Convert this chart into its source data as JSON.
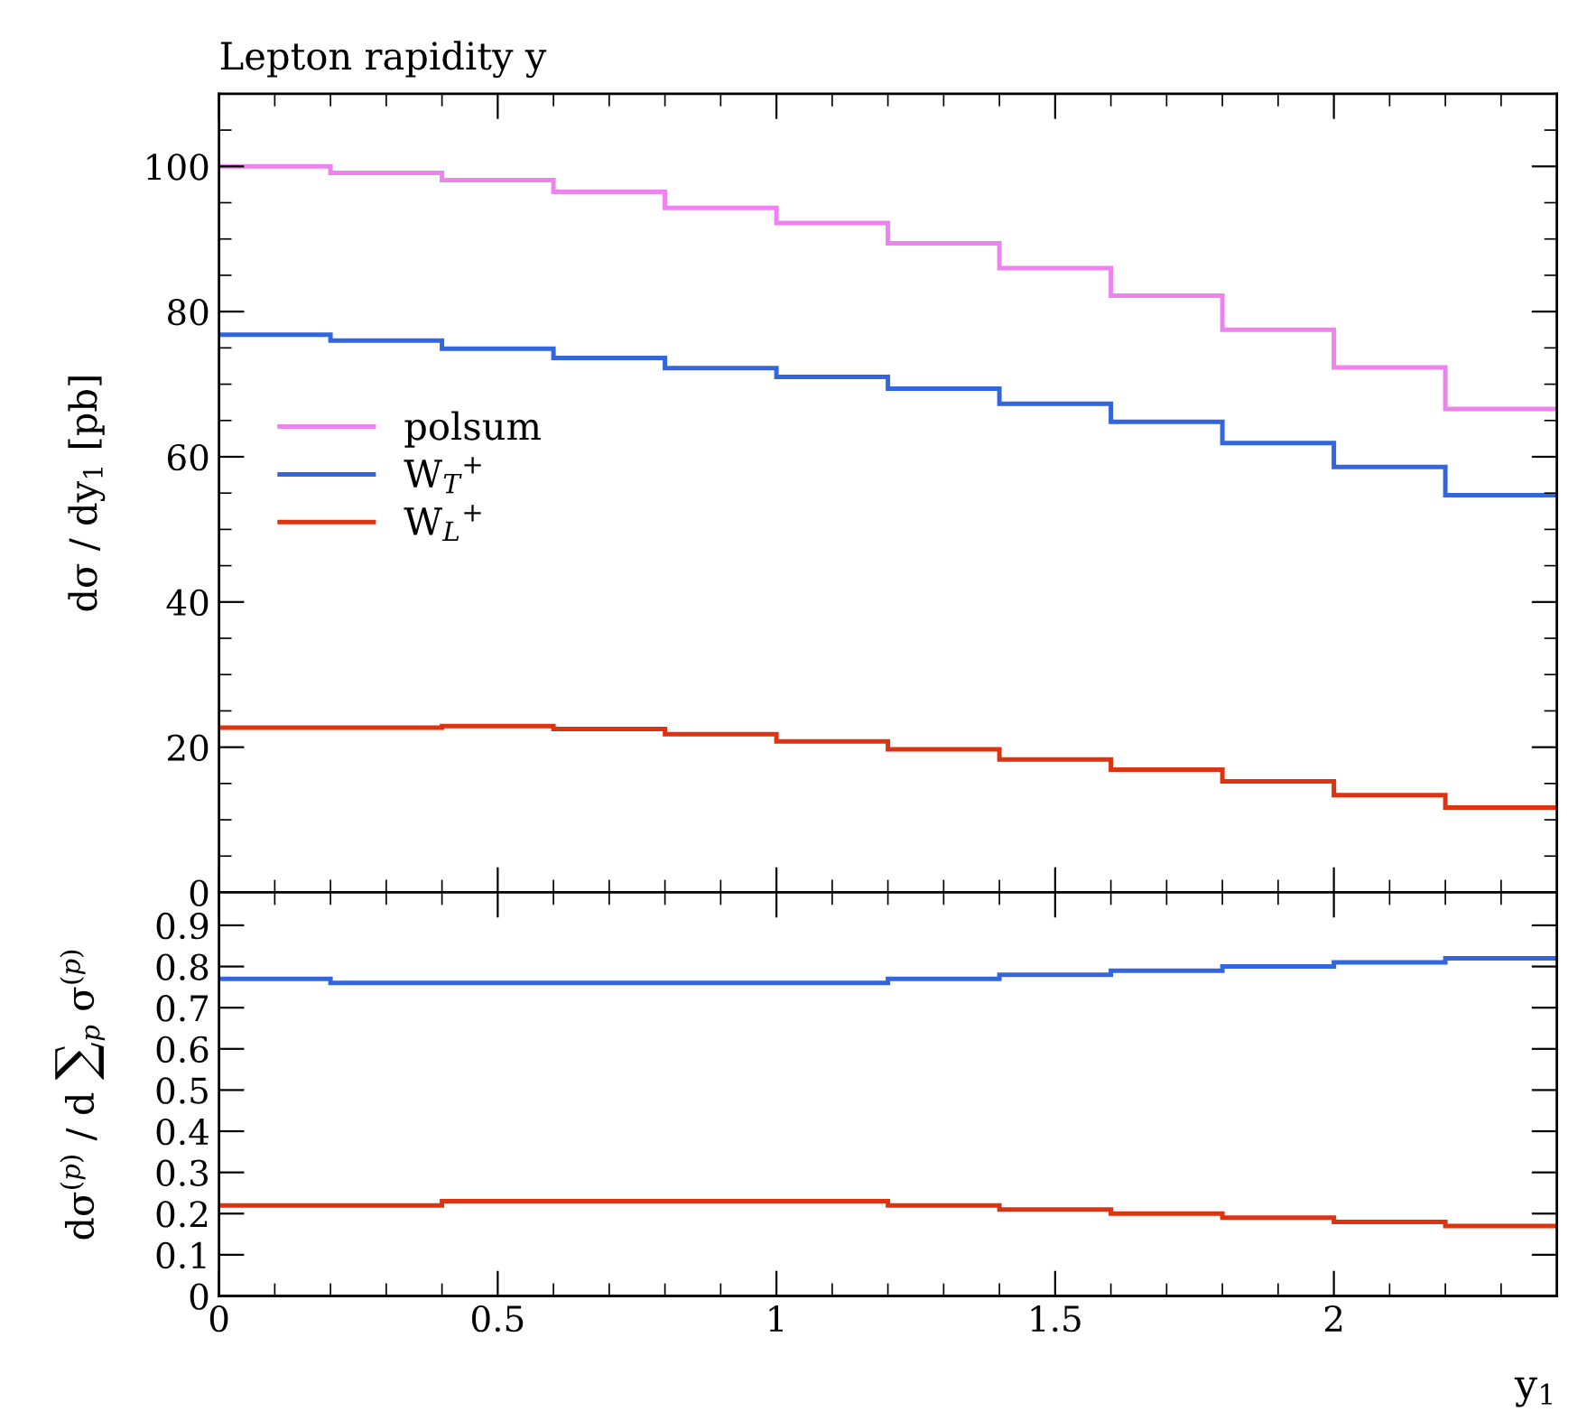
{
  "chart_data": [
    {
      "type": "histogram",
      "title": "Lepton rapidity y",
      "ylabel": "dσ / dy$_{1}$ [pb]",
      "bins": [
        0,
        0.2,
        0.4,
        0.6,
        0.8,
        1.0,
        1.2,
        1.4,
        1.6,
        1.8,
        2.0,
        2.2,
        2.4
      ],
      "series": [
        {
          "name": "polsum",
          "color": "#ee82ee",
          "values": [
            100,
            99.1,
            98.1,
            96.5,
            94.3,
            92.2,
            89.4,
            86,
            82.2,
            77.5,
            72.3,
            66.6
          ]
        },
        {
          "name": "W$_{T}$$^{+}$",
          "color": "#3366dd",
          "values": [
            76.8,
            76,
            74.9,
            73.6,
            72.2,
            71,
            69.4,
            67.3,
            64.8,
            61.9,
            58.6,
            54.7
          ]
        },
        {
          "name": "W$_{L}$$^{+}$",
          "color": "#dd3311",
          "values": [
            22.7,
            22.7,
            22.9,
            22.5,
            21.8,
            20.8,
            19.7,
            18.3,
            16.9,
            15.3,
            13.4,
            11.7
          ]
        }
      ],
      "xlim": [
        0,
        2.4
      ],
      "xticks": [
        0,
        {
          "value": 0.1,
          "label": null
        },
        {
          "value": 0.2,
          "label": null
        },
        {
          "value": 0.3,
          "label": null
        },
        {
          "value": 0.4,
          "label": null
        },
        0.5,
        {
          "value": 0.6,
          "label": null
        },
        {
          "value": 0.7,
          "label": null
        },
        {
          "value": 0.8,
          "label": null
        },
        {
          "value": 0.9,
          "label": null
        },
        1,
        {
          "value": 1.1,
          "label": null
        },
        {
          "value": 1.2,
          "label": null
        },
        {
          "value": 1.3,
          "label": null
        },
        {
          "value": 1.4,
          "label": null
        },
        1.5,
        {
          "value": 1.6,
          "label": null
        },
        {
          "value": 1.7,
          "label": null
        },
        {
          "value": 1.8,
          "label": null
        },
        {
          "value": 1.9,
          "label": null
        },
        2,
        {
          "value": 2.1,
          "label": null
        },
        {
          "value": 2.2,
          "label": null
        },
        {
          "value": 2.3,
          "label": null
        }
      ],
      "ylim": [
        0,
        110
      ],
      "yticks": [
        0,
        {
          "value": 5,
          "label": null
        },
        {
          "value": 10,
          "label": null
        },
        {
          "value": 15,
          "label": null
        },
        20,
        {
          "value": 25,
          "label": null
        },
        {
          "value": 30,
          "label": null
        },
        {
          "value": 35,
          "label": null
        },
        40,
        {
          "value": 45,
          "label": null
        },
        {
          "value": 50,
          "label": null
        },
        {
          "value": 55,
          "label": null
        },
        60,
        {
          "value": 65,
          "label": null
        },
        {
          "value": 70,
          "label": null
        },
        {
          "value": 75,
          "label": null
        },
        80,
        {
          "value": 85,
          "label": null
        },
        {
          "value": 90,
          "label": null
        },
        {
          "value": 95,
          "label": null
        },
        100,
        {
          "value": 105,
          "label": null
        }
      ],
      "legend": "left",
      "grid": false,
      "tick_labels": "y"
    },
    {
      "type": "histogram",
      "ylabel": "dσ$^{(p)}$ / d ∑$_{p}$ σ$^{(p)}$",
      "xlabel": "y$_{1}$",
      "bins": [
        0,
        0.2,
        0.4,
        0.6,
        0.8,
        1.0,
        1.2,
        1.4,
        1.6,
        1.8,
        2.0,
        2.2,
        2.4
      ],
      "series": [
        {
          "color": "#3366dd",
          "values": [
            0.77,
            0.76,
            0.76,
            0.76,
            0.76,
            0.76,
            0.77,
            0.78,
            0.79,
            0.8,
            0.81,
            0.82
          ]
        },
        {
          "color": "#dd3311",
          "values": [
            0.22,
            0.22,
            0.23,
            0.23,
            0.23,
            0.23,
            0.22,
            0.21,
            0.2,
            0.19,
            0.18,
            0.17
          ]
        }
      ],
      "xlim": [
        0,
        2.4
      ],
      "xticks": [
        0,
        {
          "value": 0.1,
          "label": null
        },
        {
          "value": 0.2,
          "label": null
        },
        {
          "value": 0.3,
          "label": null
        },
        {
          "value": 0.4,
          "label": null
        },
        0.5,
        {
          "value": 0.6,
          "label": null
        },
        {
          "value": 0.7,
          "label": null
        },
        {
          "value": 0.8,
          "label": null
        },
        {
          "value": 0.9,
          "label": null
        },
        1,
        {
          "value": 1.1,
          "label": null
        },
        {
          "value": 1.2,
          "label": null
        },
        {
          "value": 1.3,
          "label": null
        },
        {
          "value": 1.4,
          "label": null
        },
        1.5,
        {
          "value": 1.6,
          "label": null
        },
        {
          "value": 1.7,
          "label": null
        },
        {
          "value": 1.8,
          "label": null
        },
        {
          "value": 1.9,
          "label": null
        },
        2,
        {
          "value": 2.1,
          "label": null
        },
        {
          "value": 2.2,
          "label": null
        },
        {
          "value": 2.3,
          "label": null
        }
      ],
      "ylim": [
        0,
        0.98
      ],
      "yticks": [
        0,
        0.1,
        0.2,
        0.3,
        0.4,
        0.5,
        0.6,
        0.7,
        0.8,
        0.9
      ],
      "grid": false
    }
  ]
}
